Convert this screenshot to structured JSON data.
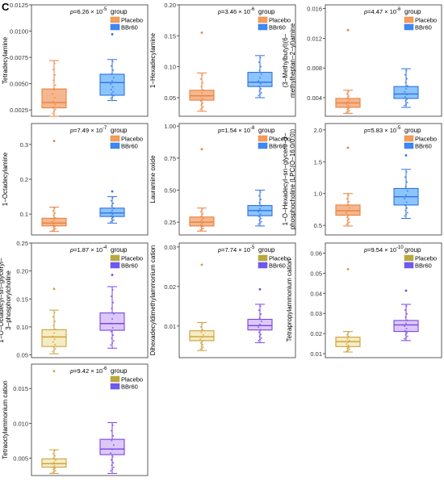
{
  "panel_label": "C",
  "legend": {
    "title": "group",
    "items": [
      {
        "label": "Placebo"
      },
      {
        "label": "BBr60"
      }
    ]
  },
  "chart_data": [
    {
      "type": "box",
      "ylabel": "Tetradecylamine",
      "p_text": "p=6.26 × 10⁻⁵",
      "ylim": [
        0.0019,
        0.0125
      ],
      "yticks": [
        0.0025,
        0.005,
        0.0075,
        0.01,
        0.0125
      ],
      "ytick_labels": [
        "0.0025",
        "0.0050",
        "0.0075",
        "0.0100",
        "0.0125"
      ],
      "colors": {
        "fill": [
          "#f5b78f",
          "#8cc4ff"
        ],
        "stroke": [
          "#e9813e",
          "#2e73e0"
        ],
        "legend": [
          "#f39c5c",
          "#3d88f5"
        ]
      },
      "groups": [
        {
          "name": "Placebo",
          "q1": 0.0027,
          "median": 0.0032,
          "q3": 0.0045,
          "whisker_low": 0.0019,
          "whisker_high": 0.0072,
          "outliers": []
        },
        {
          "name": "BBr60",
          "q1": 0.0039,
          "median": 0.0051,
          "q3": 0.0059,
          "whisker_low": 0.0034,
          "whisker_high": 0.0073,
          "outliers": [
            0.0097
          ]
        }
      ]
    },
    {
      "type": "box",
      "ylabel": "1−Hexadecylamine",
      "p_text": "p=3.46 × 10⁻⁶",
      "ylim": [
        0.02,
        0.2
      ],
      "yticks": [
        0.05,
        0.1,
        0.15,
        0.2
      ],
      "ytick_labels": [
        "0.05",
        "0.10",
        "0.15",
        "0.20"
      ],
      "colors": {
        "fill": [
          "#f5b78f",
          "#8cc4ff"
        ],
        "stroke": [
          "#e9813e",
          "#2e73e0"
        ],
        "legend": [
          "#f39c5c",
          "#3d88f5"
        ]
      },
      "groups": [
        {
          "name": "Placebo",
          "q1": 0.046,
          "median": 0.053,
          "q3": 0.062,
          "whisker_low": 0.028,
          "whisker_high": 0.09,
          "outliers": [
            0.155
          ]
        },
        {
          "name": "BBr60",
          "q1": 0.068,
          "median": 0.075,
          "q3": 0.091,
          "whisker_low": 0.05,
          "whisker_high": 0.118,
          "outliers": []
        }
      ]
    },
    {
      "type": "box",
      "ylabel": "(3−Methylbutyl)(6−methylheptan−2−yl)amine",
      "p_text": "p=4.47 × 10⁻⁶",
      "ylim": [
        0.0015,
        0.0165
      ],
      "yticks": [
        0.004,
        0.008,
        0.012,
        0.016
      ],
      "ytick_labels": [
        "0.004",
        "0.008",
        "0.012",
        "0.016"
      ],
      "colors": {
        "fill": [
          "#f5b78f",
          "#8cc4ff"
        ],
        "stroke": [
          "#e9813e",
          "#2e73e0"
        ],
        "legend": [
          "#f39c5c",
          "#3d88f5"
        ]
      },
      "groups": [
        {
          "name": "Placebo",
          "q1": 0.0027,
          "median": 0.0033,
          "q3": 0.0039,
          "whisker_low": 0.0019,
          "whisker_high": 0.005,
          "outliers": [
            0.0131
          ]
        },
        {
          "name": "BBr60",
          "q1": 0.0039,
          "median": 0.0045,
          "q3": 0.0055,
          "whisker_low": 0.0027,
          "whisker_high": 0.0079,
          "outliers": []
        }
      ]
    },
    {
      "type": "box",
      "ylabel": "1−Octadecylamine",
      "p_text": "p=7.49 × 10⁻⁷",
      "ylim": [
        0.04,
        0.36
      ],
      "yticks": [
        0.1,
        0.2,
        0.3
      ],
      "ytick_labels": [
        "0.1",
        "0.2",
        "0.3"
      ],
      "colors": {
        "fill": [
          "#f5b78f",
          "#8cc4ff"
        ],
        "stroke": [
          "#e9813e",
          "#2e73e0"
        ],
        "legend": [
          "#f39c5c",
          "#3d88f5"
        ]
      },
      "groups": [
        {
          "name": "Placebo",
          "q1": 0.066,
          "median": 0.074,
          "q3": 0.088,
          "whisker_low": 0.05,
          "whisker_high": 0.12,
          "outliers": [
            0.31
          ]
        },
        {
          "name": "BBr60",
          "q1": 0.093,
          "median": 0.103,
          "q3": 0.117,
          "whisker_low": 0.074,
          "whisker_high": 0.15,
          "outliers": [
            0.165
          ]
        }
      ]
    },
    {
      "type": "box",
      "ylabel": "Lauramine oxide",
      "p_text": "p=1.54 × 10⁻⁸",
      "ylim": [
        0.15,
        1.02
      ],
      "yticks": [
        0.25,
        0.5,
        0.75,
        1.0
      ],
      "ytick_labels": [
        "0.25",
        "0.50",
        "0.75",
        "1.00"
      ],
      "colors": {
        "fill": [
          "#f5b78f",
          "#8cc4ff"
        ],
        "stroke": [
          "#e9813e",
          "#2e73e0"
        ],
        "legend": [
          "#f39c5c",
          "#3d88f5"
        ]
      },
      "groups": [
        {
          "name": "Placebo",
          "q1": 0.22,
          "median": 0.25,
          "q3": 0.29,
          "whisker_low": 0.18,
          "whisker_high": 0.36,
          "outliers": [
            0.82
          ]
        },
        {
          "name": "BBr60",
          "q1": 0.3,
          "median": 0.34,
          "q3": 0.38,
          "whisker_low": 0.22,
          "whisker_high": 0.5,
          "outliers": []
        }
      ]
    },
    {
      "type": "box",
      "ylabel": "1−O−Hexadecyl−sn−glycero−3−phosphocholine (LPC(O−16:0/0:0))",
      "p_text": "p=5.83 × 10⁻⁵",
      "ylim": [
        0.35,
        2.1
      ],
      "yticks": [
        0.5,
        1.0,
        1.5,
        2.0
      ],
      "ytick_labels": [
        "0.5",
        "1.0",
        "1.5",
        "2.0"
      ],
      "colors": {
        "fill": [
          "#f5b78f",
          "#8cc4ff"
        ],
        "stroke": [
          "#e9813e",
          "#2e73e0"
        ],
        "legend": [
          "#f39c5c",
          "#3d88f5"
        ]
      },
      "groups": [
        {
          "name": "Placebo",
          "q1": 0.66,
          "median": 0.73,
          "q3": 0.82,
          "whisker_low": 0.49,
          "whisker_high": 1.0,
          "outliers": [
            1.72
          ]
        },
        {
          "name": "BBr60",
          "q1": 0.82,
          "median": 0.95,
          "q3": 1.08,
          "whisker_low": 0.61,
          "whisker_high": 1.38,
          "outliers": [
            1.6
          ]
        }
      ]
    },
    {
      "type": "box",
      "ylabel": "1−O−Octadecyl−sn−glyceryl−3−phosphorylcholine",
      "p_text": "p=1.87 × 10⁻⁴",
      "ylim": [
        0.045,
        0.25
      ],
      "yticks": [
        0.05,
        0.1,
        0.15,
        0.2,
        0.25
      ],
      "ytick_labels": [
        "0.05",
        "0.10",
        "0.15",
        "0.20",
        "0.25"
      ],
      "colors": {
        "fill": [
          "#f6ecc4",
          "#dcc9f9"
        ],
        "stroke": [
          "#c9a13a",
          "#7a45e6"
        ],
        "legend": [
          "#b6a93e",
          "#6b5cf0"
        ]
      },
      "groups": [
        {
          "name": "Placebo",
          "q1": 0.065,
          "median": 0.082,
          "q3": 0.095,
          "whisker_low": 0.052,
          "whisker_high": 0.13,
          "outliers": [
            0.168
          ]
        },
        {
          "name": "BBr60",
          "q1": 0.094,
          "median": 0.106,
          "q3": 0.125,
          "whisker_low": 0.062,
          "whisker_high": 0.172,
          "outliers": [
            0.193
          ]
        }
      ]
    },
    {
      "type": "box",
      "ylabel": "Dihexadecyldimethylammonium cation",
      "p_text": "p=7.74 × 10⁻⁵",
      "ylim": [
        0.002,
        0.031
      ],
      "yticks": [
        0.01,
        0.02,
        0.03
      ],
      "ytick_labels": [
        "0.01",
        "0.02",
        "0.03"
      ],
      "colors": {
        "fill": [
          "#f6ecc4",
          "#dcc9f9"
        ],
        "stroke": [
          "#c9a13a",
          "#7a45e6"
        ],
        "legend": [
          "#b6a93e",
          "#6b5cf0"
        ]
      },
      "groups": [
        {
          "name": "Placebo",
          "q1": 0.0063,
          "median": 0.0073,
          "q3": 0.0088,
          "whisker_low": 0.0038,
          "whisker_high": 0.0109,
          "outliers": [
            0.0255
          ]
        },
        {
          "name": "BBr60",
          "q1": 0.009,
          "median": 0.0101,
          "q3": 0.0117,
          "whisker_low": 0.0058,
          "whisker_high": 0.0155,
          "outliers": [
            0.0193
          ]
        }
      ]
    },
    {
      "type": "box",
      "ylabel": "Tetrapropylammonium cation",
      "p_text": "p=9.54 × 10⁻¹⁰",
      "ylim": [
        0.008,
        0.065
      ],
      "yticks": [
        0.01,
        0.02,
        0.03,
        0.04,
        0.05,
        0.06
      ],
      "ytick_labels": [
        "0.01",
        "0.02",
        "0.03",
        "0.04",
        "0.05",
        "0.06"
      ],
      "colors": {
        "fill": [
          "#f6ecc4",
          "#dcc9f9"
        ],
        "stroke": [
          "#c9a13a",
          "#7a45e6"
        ],
        "legend": [
          "#b6a93e",
          "#6b5cf0"
        ]
      },
      "groups": [
        {
          "name": "Placebo",
          "q1": 0.0135,
          "median": 0.016,
          "q3": 0.0182,
          "whisker_low": 0.0108,
          "whisker_high": 0.021,
          "outliers": [
            0.052
          ]
        },
        {
          "name": "BBr60",
          "q1": 0.021,
          "median": 0.0243,
          "q3": 0.0265,
          "whisker_low": 0.0165,
          "whisker_high": 0.0345,
          "outliers": [
            0.0413
          ]
        }
      ]
    },
    {
      "type": "box",
      "ylabel": "Tetraoctylammonium cation",
      "p_text": "p=9.42 × 10⁻⁶",
      "ylim": [
        0.0025,
        0.0185
      ],
      "yticks": [
        0.005,
        0.01,
        0.015
      ],
      "ytick_labels": [
        "0.005",
        "0.010",
        "0.015"
      ],
      "colors": {
        "fill": [
          "#f6ecc4",
          "#dcc9f9"
        ],
        "stroke": [
          "#c9a13a",
          "#7a45e6"
        ],
        "legend": [
          "#b6a93e",
          "#6b5cf0"
        ]
      },
      "groups": [
        {
          "name": "Placebo",
          "q1": 0.0037,
          "median": 0.0042,
          "q3": 0.0049,
          "whisker_low": 0.0028,
          "whisker_high": 0.0062,
          "outliers": [
            0.0175
          ]
        },
        {
          "name": "BBr60",
          "q1": 0.0055,
          "median": 0.0063,
          "q3": 0.0077,
          "whisker_low": 0.0028,
          "whisker_high": 0.0101,
          "outliers": []
        }
      ]
    }
  ]
}
